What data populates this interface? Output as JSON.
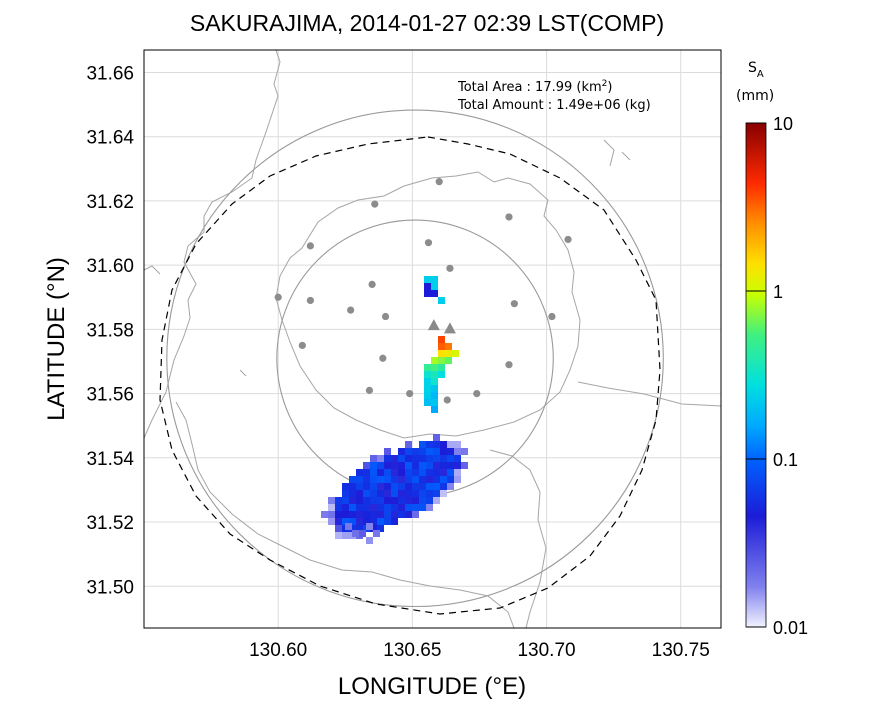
{
  "chart_data": {
    "type": "heatmap",
    "title": "SAKURAJIMA, 2014-01-27 02:39 LST(COMP)",
    "xlabel": "LONGITUDE (°E)",
    "ylabel": "LATITUDE (°N)",
    "xlim": [
      130.55,
      130.765
    ],
    "ylim": [
      31.487,
      31.667
    ],
    "xticks": [
      "130.60",
      "130.65",
      "130.70",
      "130.75"
    ],
    "yticks": [
      "31.50",
      "31.52",
      "31.54",
      "31.56",
      "31.58",
      "31.60",
      "31.62",
      "31.64",
      "31.66"
    ],
    "grid": true,
    "annotations": {
      "area_label": "Total Area   : 17.99 (km",
      "area_sup": "2",
      "area_close": ")",
      "amount_label": "Total Amount : 1.49e+06 (kg)"
    },
    "colorbar": {
      "symbol": "S",
      "subscript": "A",
      "unit": "(mm)",
      "scale": "log",
      "range": [
        0.01,
        10
      ],
      "ticks": [
        "0.01",
        "0.1",
        "1",
        "10"
      ]
    },
    "vents": [
      {
        "lon": 130.658,
        "lat": 31.581
      },
      {
        "lon": 130.664,
        "lat": 31.58
      }
    ],
    "stations": [
      {
        "lon": 130.66,
        "lat": 31.626
      },
      {
        "lon": 130.636,
        "lat": 31.619
      },
      {
        "lon": 130.686,
        "lat": 31.615
      },
      {
        "lon": 130.612,
        "lat": 31.606
      },
      {
        "lon": 130.656,
        "lat": 31.607
      },
      {
        "lon": 130.708,
        "lat": 31.608
      },
      {
        "lon": 130.664,
        "lat": 31.599
      },
      {
        "lon": 130.6,
        "lat": 31.59
      },
      {
        "lon": 130.612,
        "lat": 31.589
      },
      {
        "lon": 130.627,
        "lat": 31.586
      },
      {
        "lon": 130.635,
        "lat": 31.594
      },
      {
        "lon": 130.64,
        "lat": 31.584
      },
      {
        "lon": 130.688,
        "lat": 31.588
      },
      {
        "lon": 130.702,
        "lat": 31.584
      },
      {
        "lon": 130.609,
        "lat": 31.575
      },
      {
        "lon": 130.639,
        "lat": 31.571
      },
      {
        "lon": 130.686,
        "lat": 31.569
      },
      {
        "lon": 130.634,
        "lat": 31.561
      },
      {
        "lon": 130.649,
        "lat": 31.56
      },
      {
        "lon": 130.674,
        "lat": 31.56
      },
      {
        "lon": 130.663,
        "lat": 31.558
      }
    ],
    "range_rings": [
      {
        "lon": 130.651,
        "lat": 31.571,
        "radius_deg": 0.0515
      },
      {
        "lon": 130.651,
        "lat": 31.571,
        "radius_deg": 0.0925
      }
    ]
  }
}
